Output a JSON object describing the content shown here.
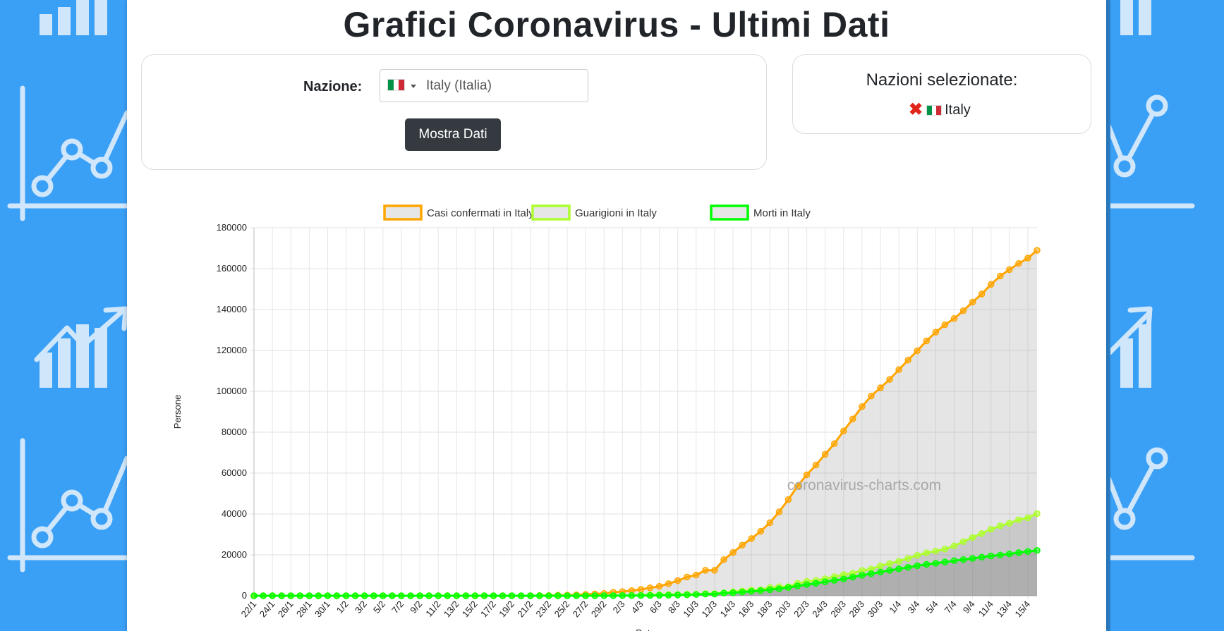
{
  "page": {
    "title": "Grafici Coronavirus - Ultimi Dati"
  },
  "nation_form": {
    "label": "Nazione:",
    "selected_value": "Italy (Italia)",
    "flag_icon": "italy-flag-icon",
    "button_label": "Mostra Dati"
  },
  "selected_nations": {
    "title": "Nazioni selezionate:",
    "items": [
      {
        "name": "Italy",
        "remove_icon": "remove-x-icon",
        "flag_icon": "italy-flag-icon"
      }
    ]
  },
  "colors": {
    "confirmed": "#ffa500",
    "recovered": "#adff2f",
    "deaths": "#00ff00",
    "page_background": "#3aa0f6",
    "button": "#343a40"
  },
  "chart_data": {
    "type": "line",
    "xlabel": "Data",
    "ylabel": "Persone",
    "ylim": [
      0,
      180000
    ],
    "y_ticks": [
      0,
      20000,
      40000,
      60000,
      80000,
      100000,
      120000,
      140000,
      160000,
      180000
    ],
    "x_tick_labels": [
      "22/1",
      "24/1",
      "26/1",
      "28/1",
      "30/1",
      "1/2",
      "3/2",
      "5/2",
      "7/2",
      "9/2",
      "11/2",
      "13/2",
      "15/2",
      "17/2",
      "19/2",
      "21/2",
      "23/2",
      "25/2",
      "27/2",
      "29/2",
      "2/3",
      "4/3",
      "6/3",
      "8/3",
      "10/3",
      "12/3",
      "14/3",
      "16/3",
      "18/3",
      "20/3",
      "22/3",
      "24/3",
      "26/3",
      "28/3",
      "30/3",
      "1/4",
      "3/4",
      "5/4",
      "7/4",
      "9/4",
      "11/4",
      "13/4",
      "15/4"
    ],
    "start_label": "22/1",
    "end_label": "15/4",
    "grid": true,
    "legend_position": "top",
    "watermark": "coronavirus-charts.com",
    "series": [
      {
        "name": "Casi confermati in Italy",
        "color": "#ffa500",
        "values": [
          0,
          0,
          0,
          0,
          0,
          0,
          0,
          0,
          0,
          2,
          2,
          2,
          2,
          2,
          2,
          2,
          2,
          2,
          3,
          3,
          3,
          3,
          3,
          3,
          3,
          3,
          3,
          3,
          3,
          3,
          20,
          62,
          155,
          229,
          322,
          453,
          655,
          888,
          1128,
          1694,
          2036,
          2502,
          3089,
          3858,
          4636,
          5883,
          7375,
          9172,
          10149,
          12462,
          12462,
          17660,
          21157,
          24747,
          27980,
          31506,
          35713,
          41035,
          47021,
          53578,
          59138,
          63927,
          69176,
          74386,
          80589,
          86498,
          92472,
          97689,
          101739,
          105792,
          110574,
          115242,
          119827,
          124632,
          128948,
          132547,
          135586,
          139422,
          143626,
          147577,
          152271,
          156363,
          159516,
          162488,
          165155,
          168941
        ]
      },
      {
        "name": "Guarigioni in Italy",
        "color": "#adff2f",
        "values": [
          0,
          0,
          0,
          0,
          0,
          0,
          0,
          0,
          0,
          0,
          0,
          0,
          0,
          0,
          0,
          0,
          0,
          0,
          0,
          0,
          0,
          0,
          0,
          0,
          0,
          0,
          0,
          0,
          0,
          0,
          0,
          1,
          2,
          1,
          1,
          3,
          45,
          46,
          46,
          83,
          149,
          160,
          276,
          414,
          523,
          589,
          622,
          724,
          724,
          1045,
          1045,
          1439,
          1966,
          2335,
          2749,
          2941,
          4025,
          4440,
          4440,
          6072,
          7024,
          7432,
          8326,
          9362,
          10361,
          10950,
          12384,
          13030,
          14620,
          15729,
          16847,
          18278,
          19758,
          20996,
          21815,
          22837,
          24392,
          26491,
          28470,
          30455,
          32534,
          34211,
          35435,
          37130,
          38092,
          40164
        ]
      },
      {
        "name": "Morti in Italy",
        "color": "#00ff00",
        "values": [
          0,
          0,
          0,
          0,
          0,
          0,
          0,
          0,
          0,
          0,
          0,
          0,
          0,
          0,
          0,
          0,
          0,
          0,
          0,
          0,
          0,
          0,
          0,
          0,
          0,
          0,
          0,
          0,
          0,
          0,
          1,
          2,
          3,
          7,
          10,
          12,
          17,
          21,
          29,
          34,
          52,
          79,
          107,
          148,
          197,
          233,
          366,
          463,
          631,
          827,
          827,
          1266,
          1441,
          1809,
          2158,
          2503,
          2978,
          3405,
          4032,
          4825,
          5476,
          6077,
          6820,
          7503,
          8165,
          9134,
          10023,
          10779,
          11591,
          12428,
          13155,
          13915,
          14681,
          15362,
          15887,
          16523,
          17127,
          17669,
          18279,
          18849,
          19468,
          19899,
          20465,
          21067,
          21645,
          22170
        ]
      }
    ]
  }
}
